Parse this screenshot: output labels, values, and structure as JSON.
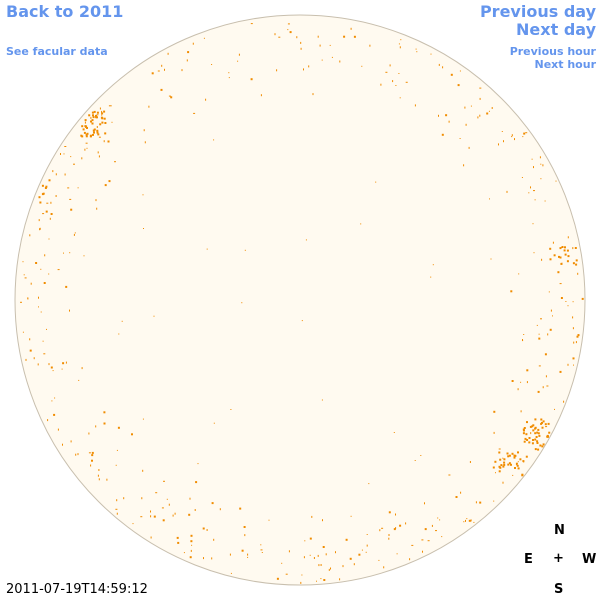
{
  "nav": {
    "back": "Back to 2011",
    "facular": "See facular data",
    "prev_day": "Previous day",
    "next_day": "Next day",
    "prev_hour": "Previous hour",
    "next_hour": "Next hour"
  },
  "timestamp": "2011-07-19T14:59:12",
  "compass": {
    "north": "N",
    "south": "S",
    "east": "E",
    "west": "W",
    "center": "+"
  },
  "colors": {
    "link": "#6495ed",
    "disk_fill": "#fffaf0",
    "disk_border": "#c8bfae",
    "facula": "#f08c00"
  },
  "faculae_clusters": [
    {
      "name": "north-east-limb",
      "lat": 0.62,
      "lon": -0.73,
      "spread": 0.045,
      "count": 45
    },
    {
      "name": "east-limb-mid",
      "lat": 0.4,
      "lon": -0.92,
      "spread": 0.04,
      "count": 25
    },
    {
      "name": "west-limb-north",
      "lat": 0.45,
      "lon": 0.94,
      "spread": 0.03,
      "count": 35
    },
    {
      "name": "west-limb-center",
      "lat": 0.15,
      "lon": 0.92,
      "spread": 0.05,
      "count": 18
    },
    {
      "name": "south-west-1",
      "lat": -0.46,
      "lon": 0.83,
      "spread": 0.05,
      "count": 40
    },
    {
      "name": "south-west-2",
      "lat": -0.57,
      "lon": 0.74,
      "spread": 0.045,
      "count": 28
    },
    {
      "name": "south-west-3",
      "lat": -0.5,
      "lon": 0.86,
      "spread": 0.04,
      "count": 20
    }
  ]
}
